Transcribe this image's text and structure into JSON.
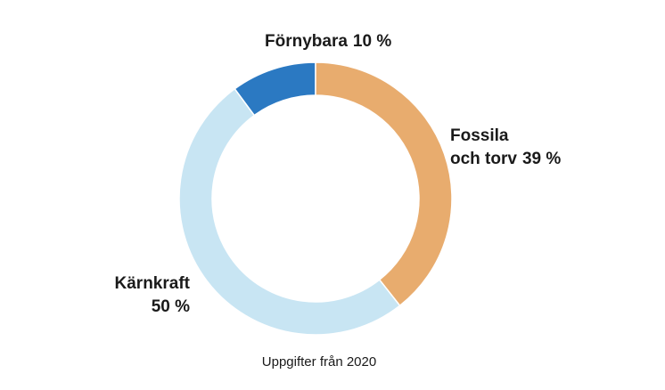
{
  "chart_data": {
    "type": "pie",
    "donut": true,
    "categories": [
      "Förnybara",
      "Fossila och torv",
      "Kärnkraft"
    ],
    "values": [
      10,
      39,
      50
    ],
    "value_labels": [
      "10 %",
      "39 %",
      "50 %"
    ],
    "colors": [
      "#2b79c2",
      "#e8ac6e",
      "#c8e5f3"
    ],
    "label_lines": {
      "fornybara": [
        "Förnybara"
      ],
      "fossila": [
        "Fossila",
        "och torv"
      ],
      "karnkraft": [
        "Kärnkraft"
      ]
    },
    "note": "Uppgifter från 2020"
  }
}
